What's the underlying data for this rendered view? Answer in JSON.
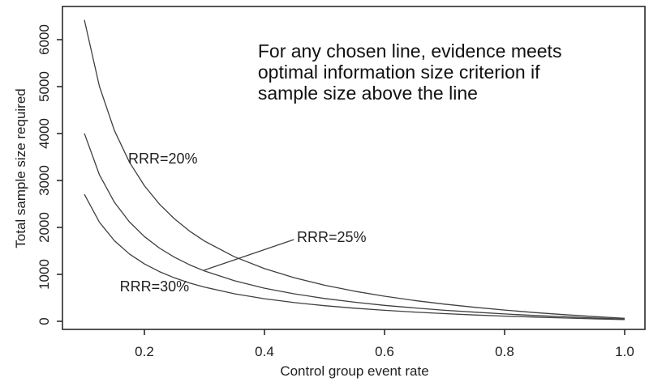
{
  "chart_data": {
    "type": "line",
    "title": "",
    "xlabel": "Control group event rate",
    "ylabel": "Total sample size required",
    "xlim": [
      0.064,
      1.035
    ],
    "ylim": [
      -190,
      6700
    ],
    "grid": false,
    "legend_position": "none",
    "x_ticks": [
      0.2,
      0.4,
      0.6,
      0.8,
      1.0
    ],
    "x_tick_labels": [
      "0.2",
      "0.4",
      "0.6",
      "0.8",
      "1.0"
    ],
    "y_ticks": [
      0,
      1000,
      2000,
      3000,
      4000,
      5000,
      6000
    ],
    "y_tick_labels": [
      "0",
      "1000",
      "2000",
      "3000",
      "4000",
      "5000",
      "6000"
    ],
    "x": [
      0.1,
      0.125,
      0.15,
      0.175,
      0.2,
      0.225,
      0.25,
      0.275,
      0.3,
      0.35,
      0.4,
      0.45,
      0.5,
      0.55,
      0.6,
      0.65,
      0.7,
      0.75,
      0.8,
      0.85,
      0.9,
      0.95,
      1.0
    ],
    "series": [
      {
        "name": "RRR=20%",
        "values": [
          6421,
          5008,
          4066,
          3392,
          2888,
          2496,
          2182,
          1925,
          1711,
          1375,
          1122,
          926,
          769,
          641,
          534,
          443,
          366,
          298,
          239,
          187,
          141,
          100,
          63
        ]
      },
      {
        "name": "RRR=25%",
        "values": [
          4003,
          3123,
          2537,
          2119,
          1805,
          1561,
          1366,
          1206,
          1073,
          863,
          706,
          584,
          487,
          407,
          340,
          284,
          235,
          194,
          157,
          125,
          96,
          70,
          47
        ]
      },
      {
        "name": "RRR=30%",
        "values": [
          2705,
          2112,
          1717,
          1435,
          1223,
          1058,
          926,
          818,
          729,
          587,
          481,
          399,
          333,
          279,
          234,
          196,
          164,
          135,
          111,
          89,
          70,
          52,
          37
        ]
      }
    ],
    "curve_labels": [
      {
        "text": "RRR=20%",
        "x": 0.173,
        "y": 3362
      },
      {
        "text": "RRR=25%",
        "x": 0.454,
        "y": 1690
      },
      {
        "text": "RRR=30%",
        "x": 0.159,
        "y": 638
      }
    ],
    "leader_line": {
      "x1": 0.449,
      "y1": 1741,
      "x2": 0.299,
      "y2": 1086
    },
    "annotation": {
      "x": 0.389,
      "y": 5621,
      "lines": [
        "For any chosen line, evidence meets",
        "optimal information size criterion if",
        "sample size above the line"
      ]
    },
    "colors": {
      "background": "#ffffff",
      "axis": "#2b2b2b",
      "curve": "#3f3f3f",
      "text": "#1f1f1f"
    }
  }
}
